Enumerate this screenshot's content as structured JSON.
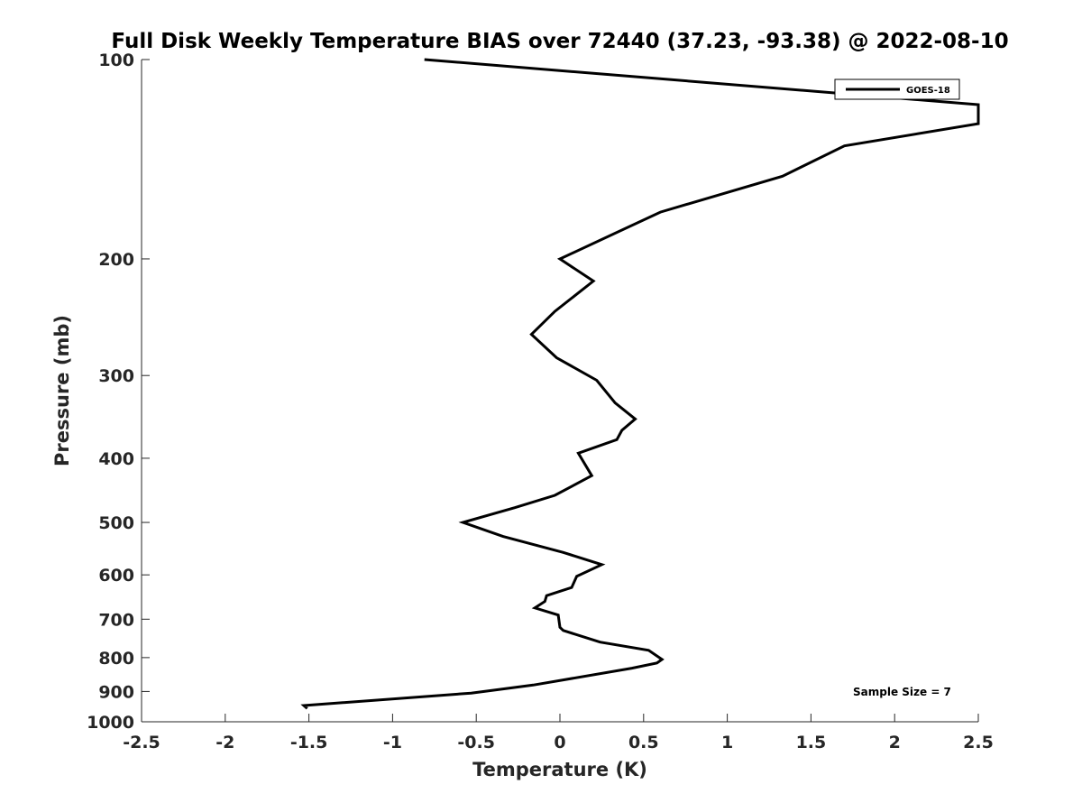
{
  "chart_data": {
    "type": "line",
    "title": "Full Disk Weekly Temperature BIAS over 72440 (37.23, -93.38) @ 2022-08-10",
    "xlabel": "Temperature (K)",
    "ylabel": "Pressure (mb)",
    "xlim": [
      -2.5,
      2.5
    ],
    "ylim": [
      100,
      1000
    ],
    "y_scale": "log",
    "y_reversed": true,
    "x_ticks": [
      "-2.5",
      "-2",
      "-1.5",
      "-1",
      "-0.5",
      "0",
      "0.5",
      "1",
      "1.5",
      "2",
      "2.5"
    ],
    "x_tick_values": [
      -2.5,
      -2,
      -1.5,
      -1,
      -0.5,
      0,
      0.5,
      1,
      1.5,
      2,
      2.5
    ],
    "y_ticks": [
      "100",
      "200",
      "300",
      "400",
      "500",
      "600",
      "700",
      "800",
      "900",
      "1000"
    ],
    "y_tick_values": [
      100,
      200,
      300,
      400,
      500,
      600,
      700,
      800,
      900,
      1000
    ],
    "grid": false,
    "legend_position": "top-right",
    "annotation": "Sample Size = 7",
    "series": [
      {
        "name": "GOES-18",
        "color": "#000000",
        "points": [
          [
            -0.81,
            100
          ],
          [
            2.5,
            117
          ],
          [
            2.5,
            125
          ],
          [
            1.7,
            135
          ],
          [
            1.33,
            150
          ],
          [
            0.6,
            170
          ],
          [
            0.0,
            200
          ],
          [
            0.2,
            216
          ],
          [
            -0.03,
            240
          ],
          [
            -0.17,
            260
          ],
          [
            -0.02,
            282
          ],
          [
            0.22,
            305
          ],
          [
            0.33,
            330
          ],
          [
            0.45,
            349
          ],
          [
            0.37,
            363
          ],
          [
            0.34,
            375
          ],
          [
            0.11,
            393
          ],
          [
            0.19,
            425
          ],
          [
            -0.03,
            455
          ],
          [
            -0.27,
            475
          ],
          [
            -0.58,
            500
          ],
          [
            -0.34,
            525
          ],
          [
            0.02,
            555
          ],
          [
            0.25,
            579
          ],
          [
            0.1,
            603
          ],
          [
            0.07,
            627
          ],
          [
            -0.08,
            645
          ],
          [
            -0.09,
            658
          ],
          [
            -0.15,
            673
          ],
          [
            -0.01,
            690
          ],
          [
            0.0,
            720
          ],
          [
            0.02,
            728
          ],
          [
            0.24,
            758
          ],
          [
            0.53,
            780
          ],
          [
            0.61,
            805
          ],
          [
            0.58,
            815
          ],
          [
            0.43,
            830
          ],
          [
            -0.16,
            880
          ],
          [
            -0.53,
            905
          ],
          [
            -1.53,
            945
          ],
          [
            -1.51,
            955
          ]
        ]
      }
    ]
  }
}
